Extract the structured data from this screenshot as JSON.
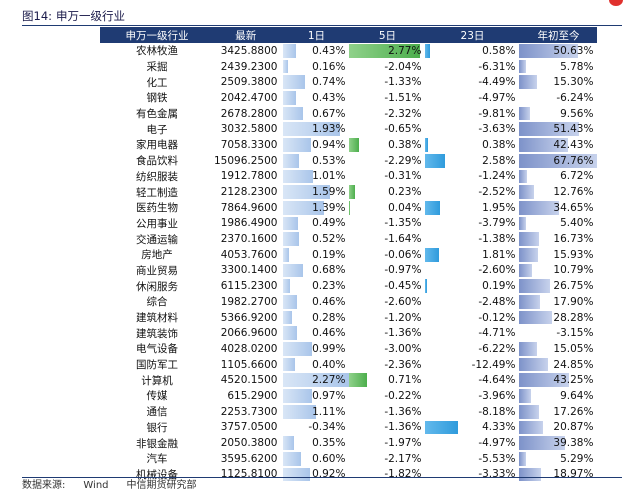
{
  "figure": {
    "label": "图14:",
    "title": "申万一级行业"
  },
  "table": {
    "headers": [
      "申万一级行业",
      "最新",
      "1日",
      "5日",
      "23日",
      "年初至今"
    ],
    "rows": [
      {
        "industry": "农林牧渔",
        "last": "3425.8800",
        "d1": "0.43%",
        "d5": "2.77%",
        "d23": "0.58%",
        "ytd": "50.63%"
      },
      {
        "industry": "采掘",
        "last": "2439.2300",
        "d1": "0.16%",
        "d5": "-2.04%",
        "d23": "-6.31%",
        "ytd": "5.78%"
      },
      {
        "industry": "化工",
        "last": "2509.3800",
        "d1": "0.74%",
        "d5": "-1.33%",
        "d23": "-4.49%",
        "ytd": "15.30%"
      },
      {
        "industry": "钢铁",
        "last": "2042.4700",
        "d1": "0.43%",
        "d5": "-1.51%",
        "d23": "-4.97%",
        "ytd": "-6.24%"
      },
      {
        "industry": "有色金属",
        "last": "2678.2800",
        "d1": "0.67%",
        "d5": "-2.32%",
        "d23": "-9.81%",
        "ytd": "9.56%"
      },
      {
        "industry": "电子",
        "last": "3032.5800",
        "d1": "1.93%",
        "d5": "-0.65%",
        "d23": "-3.63%",
        "ytd": "51.43%"
      },
      {
        "industry": "家用电器",
        "last": "7058.3300",
        "d1": "0.94%",
        "d5": "0.38%",
        "d23": "0.38%",
        "ytd": "42.43%"
      },
      {
        "industry": "食品饮料",
        "last": "15096.2500",
        "d1": "0.53%",
        "d5": "-2.29%",
        "d23": "2.58%",
        "ytd": "67.76%"
      },
      {
        "industry": "纺织服装",
        "last": "1912.7800",
        "d1": "1.01%",
        "d5": "-0.31%",
        "d23": "-1.24%",
        "ytd": "6.72%"
      },
      {
        "industry": "轻工制造",
        "last": "2128.2300",
        "d1": "1.59%",
        "d5": "0.23%",
        "d23": "-2.52%",
        "ytd": "12.76%"
      },
      {
        "industry": "医药生物",
        "last": "7864.9600",
        "d1": "1.39%",
        "d5": "0.04%",
        "d23": "1.95%",
        "ytd": "34.65%"
      },
      {
        "industry": "公用事业",
        "last": "1986.4900",
        "d1": "0.49%",
        "d5": "-1.35%",
        "d23": "-3.79%",
        "ytd": "5.40%"
      },
      {
        "industry": "交通运输",
        "last": "2370.1600",
        "d1": "0.52%",
        "d5": "-1.64%",
        "d23": "-1.38%",
        "ytd": "16.73%"
      },
      {
        "industry": "房地产",
        "last": "4053.7600",
        "d1": "0.19%",
        "d5": "-0.06%",
        "d23": "1.81%",
        "ytd": "15.93%"
      },
      {
        "industry": "商业贸易",
        "last": "3300.1400",
        "d1": "0.68%",
        "d5": "-0.97%",
        "d23": "-2.60%",
        "ytd": "10.79%"
      },
      {
        "industry": "休闲服务",
        "last": "6115.2300",
        "d1": "0.23%",
        "d5": "-0.45%",
        "d23": "0.19%",
        "ytd": "26.75%"
      },
      {
        "industry": "综合",
        "last": "1982.2700",
        "d1": "0.46%",
        "d5": "-2.60%",
        "d23": "-2.48%",
        "ytd": "17.90%"
      },
      {
        "industry": "建筑材料",
        "last": "5366.9200",
        "d1": "0.28%",
        "d5": "-1.20%",
        "d23": "-0.12%",
        "ytd": "28.28%"
      },
      {
        "industry": "建筑装饰",
        "last": "2066.9600",
        "d1": "0.46%",
        "d5": "-1.36%",
        "d23": "-4.71%",
        "ytd": "-3.15%"
      },
      {
        "industry": "电气设备",
        "last": "4028.0200",
        "d1": "0.99%",
        "d5": "-3.00%",
        "d23": "-6.22%",
        "ytd": "15.05%"
      },
      {
        "industry": "国防军工",
        "last": "1105.6600",
        "d1": "0.40%",
        "d5": "-2.36%",
        "d23": "-12.49%",
        "ytd": "24.85%"
      },
      {
        "industry": "计算机",
        "last": "4520.1500",
        "d1": "2.27%",
        "d5": "0.71%",
        "d23": "-4.64%",
        "ytd": "43.25%"
      },
      {
        "industry": "传媒",
        "last": "615.2900",
        "d1": "0.97%",
        "d5": "-0.22%",
        "d23": "-3.96%",
        "ytd": "9.64%"
      },
      {
        "industry": "通信",
        "last": "2253.7300",
        "d1": "1.11%",
        "d5": "-1.36%",
        "d23": "-8.18%",
        "ytd": "17.26%"
      },
      {
        "industry": "银行",
        "last": "3757.0500",
        "d1": "-0.34%",
        "d5": "-1.36%",
        "d23": "4.33%",
        "ytd": "20.87%"
      },
      {
        "industry": "非银金融",
        "last": "2050.3800",
        "d1": "0.35%",
        "d5": "-1.97%",
        "d23": "-4.97%",
        "ytd": "39.38%"
      },
      {
        "industry": "汽车",
        "last": "3595.6200",
        "d1": "0.60%",
        "d5": "-2.17%",
        "d23": "-5.53%",
        "ytd": "5.29%"
      },
      {
        "industry": "机械设备",
        "last": "1125.8100",
        "d1": "0.92%",
        "d5": "-1.82%",
        "d23": "-3.33%",
        "ytd": "18.97%"
      }
    ]
  },
  "source": {
    "label": "数据来源:",
    "provider": "Wind",
    "org": "中信期货研究部"
  },
  "colors": {
    "header_bg": "#1f3b73",
    "bar_1d": "#a9c5ea",
    "bar_5d": "#4cae4c",
    "bar_23d": "#2f9bdc",
    "bar_ytd": "#7d92c9",
    "top_mark": "#e0312e"
  }
}
